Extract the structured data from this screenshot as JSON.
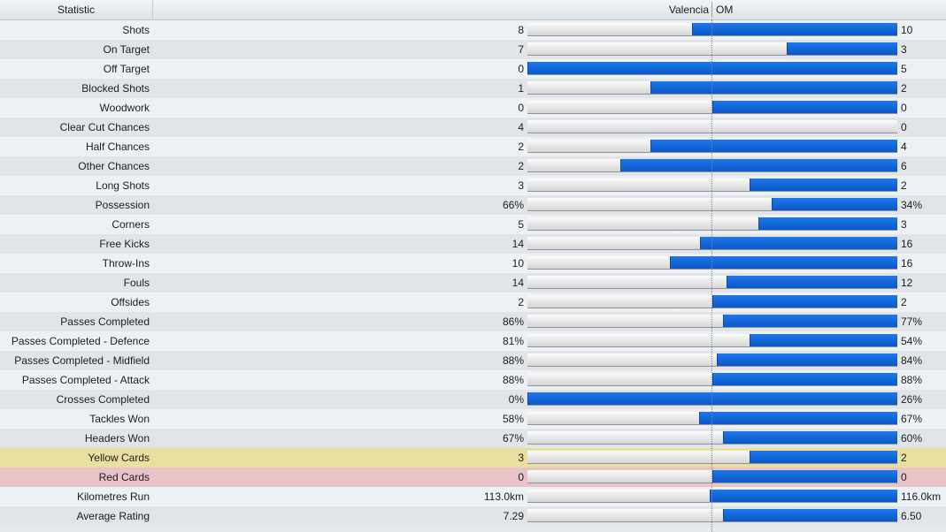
{
  "header": {
    "statistic_label": "Statistic",
    "home_team": "Valencia",
    "away_team": "OM"
  },
  "colors": {
    "away_bar": "#0a5fd6",
    "home_bar": "#e6e6e6",
    "yellow_row": "#e8e09e",
    "red_row": "#e8c3c8"
  },
  "stats": [
    {
      "label": "Shots",
      "home": "8",
      "away": "10",
      "away_share": 0.555
    },
    {
      "label": "On Target",
      "home": "7",
      "away": "3",
      "away_share": 0.3
    },
    {
      "label": "Off Target",
      "home": "0",
      "away": "5",
      "away_share": 1.0
    },
    {
      "label": "Blocked Shots",
      "home": "1",
      "away": "2",
      "away_share": 0.667
    },
    {
      "label": "Woodwork",
      "home": "0",
      "away": "0",
      "away_share": 0.5
    },
    {
      "label": "Clear Cut Chances",
      "home": "4",
      "away": "0",
      "away_share": 0.0
    },
    {
      "label": "Half Chances",
      "home": "2",
      "away": "4",
      "away_share": 0.667
    },
    {
      "label": "Other Chances",
      "home": "2",
      "away": "6",
      "away_share": 0.75
    },
    {
      "label": "Long Shots",
      "home": "3",
      "away": "2",
      "away_share": 0.4
    },
    {
      "label": "Possession",
      "home": "66%",
      "away": "34%",
      "away_share": 0.34
    },
    {
      "label": "Corners",
      "home": "5",
      "away": "3",
      "away_share": 0.375
    },
    {
      "label": "Free Kicks",
      "home": "14",
      "away": "16",
      "away_share": 0.533
    },
    {
      "label": "Throw-Ins",
      "home": "10",
      "away": "16",
      "away_share": 0.615
    },
    {
      "label": "Fouls",
      "home": "14",
      "away": "12",
      "away_share": 0.462
    },
    {
      "label": "Offsides",
      "home": "2",
      "away": "2",
      "away_share": 0.5
    },
    {
      "label": "Passes Completed",
      "home": "86%",
      "away": "77%",
      "away_share": 0.472
    },
    {
      "label": "Passes Completed - Defence",
      "home": "81%",
      "away": "54%",
      "away_share": 0.4
    },
    {
      "label": "Passes Completed - Midfield",
      "home": "88%",
      "away": "84%",
      "away_share": 0.488
    },
    {
      "label": "Passes Completed - Attack",
      "home": "88%",
      "away": "88%",
      "away_share": 0.5
    },
    {
      "label": "Crosses Completed",
      "home": "0%",
      "away": "26%",
      "away_share": 1.0
    },
    {
      "label": "Tackles Won",
      "home": "58%",
      "away": "67%",
      "away_share": 0.536
    },
    {
      "label": "Headers Won",
      "home": "67%",
      "away": "60%",
      "away_share": 0.472
    },
    {
      "label": "Yellow Cards",
      "home": "3",
      "away": "2",
      "away_share": 0.4,
      "highlight": "yellow"
    },
    {
      "label": "Red Cards",
      "home": "0",
      "away": "0",
      "away_share": 0.5,
      "highlight": "red"
    },
    {
      "label": "Kilometres Run",
      "home": "113.0km",
      "away": "116.0km",
      "away_share": 0.507
    },
    {
      "label": "Average Rating",
      "home": "7.29",
      "away": "6.50",
      "away_share": 0.472
    }
  ]
}
